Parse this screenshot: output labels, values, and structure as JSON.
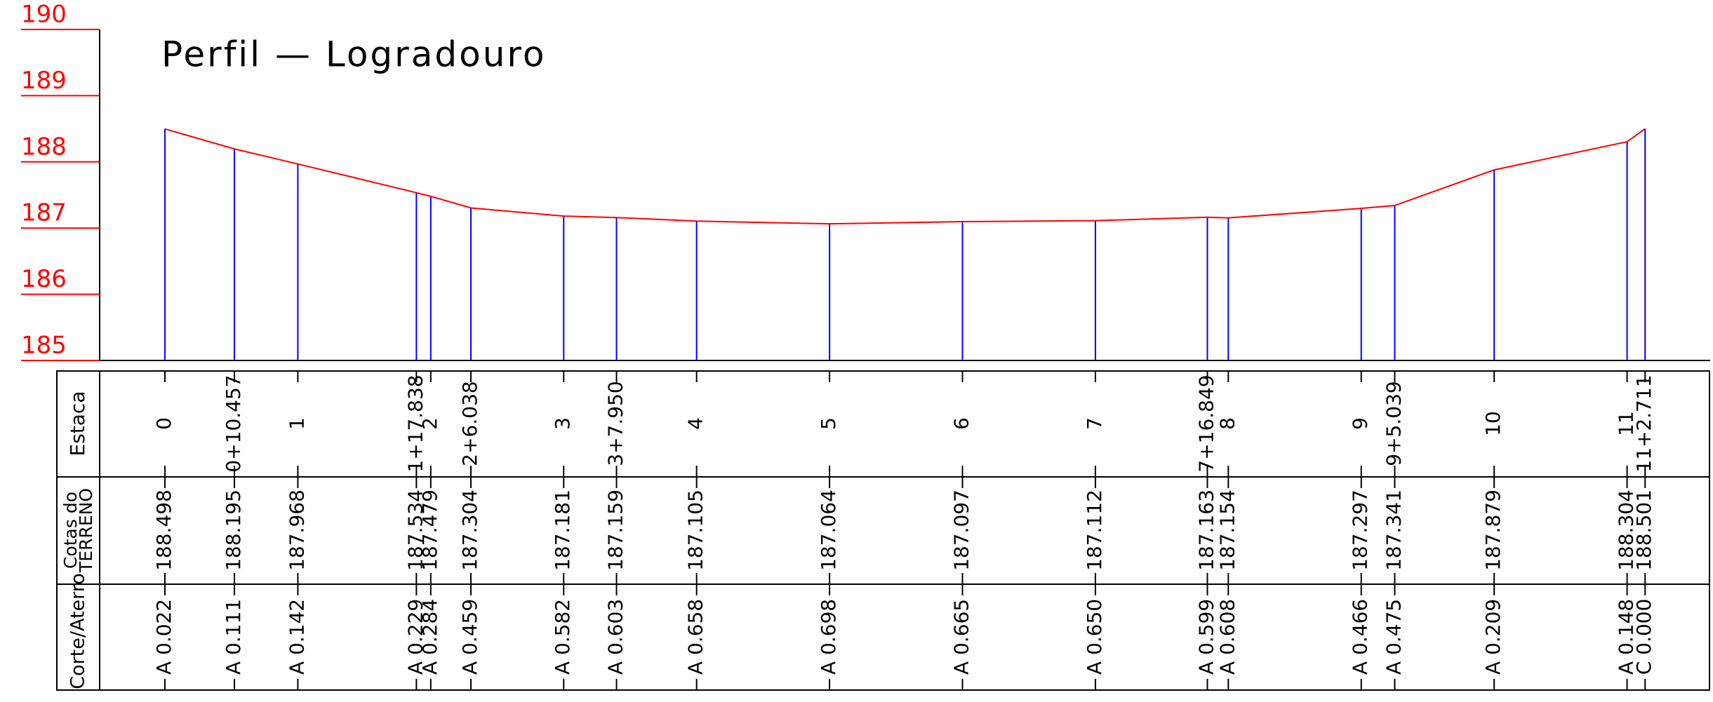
{
  "chart_data": {
    "type": "profile",
    "title": "Perfil — Logradouro",
    "categories": [
      "0",
      "0+10.457",
      "1",
      "1+17.838",
      "2",
      "2+6.038",
      "3",
      "3+7.950",
      "4",
      "5",
      "6",
      "7",
      "7+16.849",
      "8",
      "9",
      "9+5.039",
      "10",
      "11",
      "11+2.711"
    ],
    "x": [
      0,
      10.457,
      20,
      37.838,
      40,
      46.038,
      60,
      67.95,
      80,
      100,
      120,
      140,
      156.849,
      160,
      180,
      185.039,
      200,
      220,
      222.711
    ],
    "values": [
      188.498,
      188.195,
      187.968,
      187.534,
      187.479,
      187.304,
      187.181,
      187.159,
      187.105,
      187.064,
      187.097,
      187.112,
      187.163,
      187.154,
      187.297,
      187.341,
      187.879,
      188.304,
      188.501
    ],
    "cut_fill": [
      "A 0.022",
      "A 0.111",
      "A 0.142",
      "A 0.229",
      "A 0.284",
      "A 0.459",
      "A 0.582",
      "A 0.603",
      "A 0.658",
      "A 0.698",
      "A 0.665",
      "A 0.650",
      "A 0.599",
      "A 0.608",
      "A 0.466",
      "A 0.475",
      "A 0.209",
      "A 0.148",
      "C 0.000"
    ],
    "row_labels": {
      "station": "Estaca",
      "elevation": [
        "Cotas do",
        "TERRENO"
      ],
      "cut_fill": "Corte/Aterro"
    },
    "xlim": [
      -10,
      232.4
    ],
    "ylim": [
      185,
      190
    ],
    "yticks": [
      185,
      186,
      187,
      188,
      189,
      190
    ],
    "line_color": "#ff0000",
    "drop_color": "#0000ff",
    "tick_color": "#ff0000"
  }
}
